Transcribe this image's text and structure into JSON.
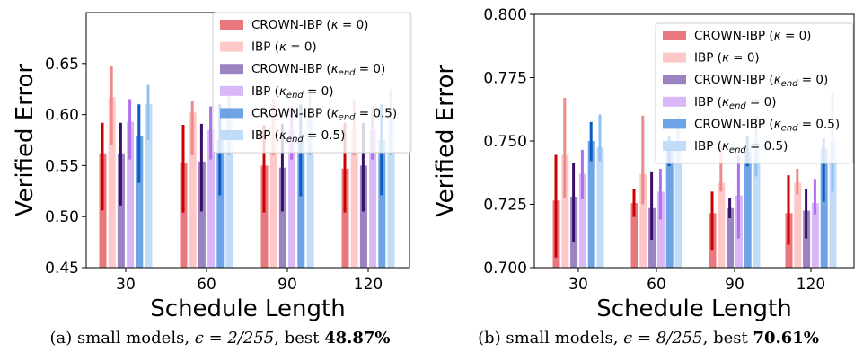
{
  "chart_data": [
    {
      "type": "bar",
      "xlabel": "Schedule Length",
      "ylabel": "Verified Error",
      "ylim": [
        0.45,
        0.7
      ],
      "yticks": [
        "0.45",
        "0.50",
        "0.55",
        "0.60",
        "0.65"
      ],
      "ytick_values": [
        0.45,
        0.5,
        0.55,
        0.6,
        0.65
      ],
      "categories": [
        "30",
        "60",
        "90",
        "120"
      ],
      "legend_placement": "top-right",
      "series": [
        {
          "name": "CROWN-IBP (κ = 0)",
          "bar_color": "#e8787e",
          "err_color": "#cc0000",
          "values": [
            0.562,
            0.553,
            0.55,
            0.547
          ],
          "err_low": [
            0.506,
            0.504,
            0.504,
            0.504
          ],
          "err_high": [
            0.592,
            0.59,
            0.59,
            0.592
          ]
        },
        {
          "name": "IBP (κ = 0)",
          "bar_color": "#ffc8c8",
          "err_color": "#f08a8a",
          "values": [
            0.617,
            0.602,
            0.59,
            0.585
          ],
          "err_low": [
            0.57,
            0.56,
            0.56,
            0.56
          ],
          "err_high": [
            0.648,
            0.613,
            0.615,
            0.615
          ]
        },
        {
          "name": "CROWN-IBP (κend = 0)",
          "bar_color": "#9a83c0",
          "err_color": "#3a0f6a",
          "values": [
            0.562,
            0.554,
            0.548,
            0.55
          ],
          "err_low": [
            0.511,
            0.505,
            0.505,
            0.505
          ],
          "err_high": [
            0.592,
            0.591,
            0.591,
            0.592
          ]
        },
        {
          "name": "IBP (κend = 0)",
          "bar_color": "#d8b8f6",
          "err_color": "#b070ee",
          "values": [
            0.593,
            0.585,
            0.585,
            0.585
          ],
          "err_low": [
            0.556,
            0.556,
            0.556,
            0.556
          ],
          "err_high": [
            0.615,
            0.608,
            0.608,
            0.608
          ]
        },
        {
          "name": "CROWN-IBP (κend = 0.5)",
          "bar_color": "#6ea4e6",
          "err_color": "#0a5cc4",
          "values": [
            0.579,
            0.575,
            0.575,
            0.575
          ],
          "err_low": [
            0.533,
            0.521,
            0.52,
            0.521
          ],
          "err_high": [
            0.61,
            0.61,
            0.61,
            0.61
          ]
        },
        {
          "name": "IBP (κend = 0.5)",
          "bar_color": "#c0dcf8",
          "err_color": "#8ec0f0",
          "values": [
            0.61,
            0.595,
            0.595,
            0.595
          ],
          "err_low": [
            0.575,
            0.56,
            0.56,
            0.56
          ],
          "err_high": [
            0.629,
            0.625,
            0.625,
            0.625
          ]
        }
      ]
    },
    {
      "type": "bar",
      "xlabel": "Schedule Length",
      "ylabel": "Verified Error",
      "ylim": [
        0.7,
        0.8
      ],
      "yticks": [
        "0.700",
        "0.725",
        "0.750",
        "0.775",
        "0.800"
      ],
      "ytick_values": [
        0.7,
        0.725,
        0.75,
        0.775,
        0.8
      ],
      "categories": [
        "30",
        "60",
        "90",
        "120"
      ],
      "legend_placement": "top-right",
      "series": [
        {
          "name": "CROWN-IBP (κ = 0)",
          "bar_color": "#e8787e",
          "err_color": "#cc0000",
          "values": [
            0.7265,
            0.7255,
            0.7215,
            0.7215
          ],
          "err_low": [
            0.704,
            0.72,
            0.707,
            0.709
          ],
          "err_high": [
            0.7445,
            0.731,
            0.73,
            0.7365
          ]
        },
        {
          "name": "IBP (κ = 0)",
          "bar_color": "#ffc8c8",
          "err_color": "#f08a8a",
          "values": [
            0.7445,
            0.737,
            0.7335,
            0.7335
          ],
          "err_low": [
            0.7275,
            0.725,
            0.73,
            0.729
          ],
          "err_high": [
            0.767,
            0.76,
            0.748,
            0.739
          ]
        },
        {
          "name": "CROWN-IBP (κend = 0)",
          "bar_color": "#9a83c0",
          "err_color": "#3a0f6a",
          "values": [
            0.728,
            0.7235,
            0.7235,
            0.7225
          ],
          "err_low": [
            0.71,
            0.711,
            0.7195,
            0.7115
          ],
          "err_high": [
            0.7415,
            0.738,
            0.7275,
            0.731
          ]
        },
        {
          "name": "IBP (κend = 0)",
          "bar_color": "#d8b8f6",
          "err_color": "#b070ee",
          "values": [
            0.737,
            0.73,
            0.7285,
            0.7255
          ],
          "err_low": [
            0.727,
            0.719,
            0.7115,
            0.721
          ],
          "err_high": [
            0.7465,
            0.739,
            0.744,
            0.735
          ]
        },
        {
          "name": "CROWN-IBP (κend = 0.5)",
          "bar_color": "#6ea4e6",
          "err_color": "#0a5cc4",
          "values": [
            0.75,
            0.746,
            0.746,
            0.747
          ],
          "err_low": [
            0.742,
            0.74,
            0.74,
            0.726
          ],
          "err_high": [
            0.7575,
            0.752,
            0.752,
            0.751
          ]
        },
        {
          "name": "IBP (κend = 0.5)",
          "bar_color": "#c0dcf8",
          "err_color": "#8ec0f0",
          "values": [
            0.7475,
            0.75,
            0.75,
            0.75
          ],
          "err_low": [
            0.742,
            0.742,
            0.736,
            0.73
          ],
          "err_high": [
            0.7605,
            0.76,
            0.76,
            0.769
          ]
        }
      ]
    }
  ],
  "captions": [
    {
      "prefix": "(a) small models, ",
      "eps": "ϵ = 2/255",
      "mid": ", best ",
      "best": "48.87%"
    },
    {
      "prefix": "(b) small models, ",
      "eps": "ϵ = 8/255",
      "mid": ", best ",
      "best": "70.61%"
    }
  ]
}
